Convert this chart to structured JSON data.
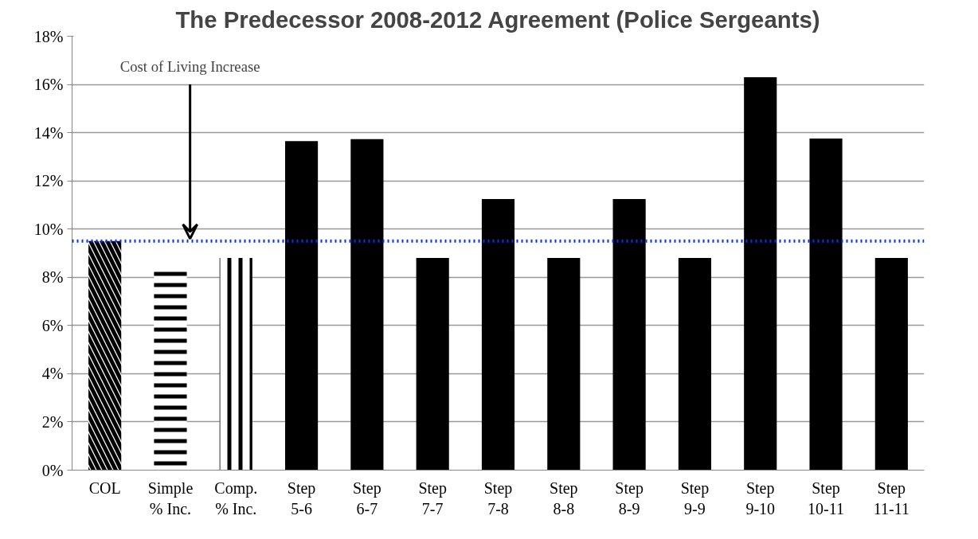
{
  "chart_data": {
    "type": "bar",
    "title": "The Predecessor 2008-2012 Agreement (Police Sergeants)",
    "categories": [
      "COL",
      "Simple\n% Inc.",
      "Comp.\n% Inc.",
      "Step\n5-6",
      "Step\n6-7",
      "Step\n7-7",
      "Step\n7-8",
      "Step\n8-8",
      "Step\n8-9",
      "Step\n9-9",
      "Step\n9-10",
      "Step\n10-11",
      "Step\n11-11"
    ],
    "values": [
      9.5,
      8.3,
      8.8,
      13.65,
      13.73,
      8.8,
      11.25,
      8.8,
      11.25,
      8.8,
      16.3,
      13.76,
      8.8
    ],
    "colors": [
      "#000000",
      "#000000",
      "#000000",
      "#000000",
      "#000000",
      "#000000",
      "#000000",
      "#000000",
      "#000000",
      "#000000",
      "#000000",
      "#000000",
      "#000000"
    ],
    "ylim": [
      0,
      18
    ],
    "yticks": [
      {
        "value": 0,
        "label": "0%"
      },
      {
        "value": 2,
        "label": "2%"
      },
      {
        "value": 4,
        "label": "4%"
      },
      {
        "value": 6,
        "label": "6%"
      },
      {
        "value": 8,
        "label": "8%"
      },
      {
        "value": 10,
        "label": "10%"
      },
      {
        "value": 12,
        "label": "12%"
      },
      {
        "value": 14,
        "label": "14%"
      },
      {
        "value": 16,
        "label": "16%"
      },
      {
        "value": 18,
        "label": "18%"
      }
    ],
    "grid": "y",
    "ref_lines": [
      {
        "axis": "y",
        "value": 9.5,
        "color": "#0033ff",
        "line_style": "dotted"
      }
    ],
    "annotations": [
      {
        "text": "Cost of Living Increase",
        "y": 9.5
      }
    ]
  }
}
